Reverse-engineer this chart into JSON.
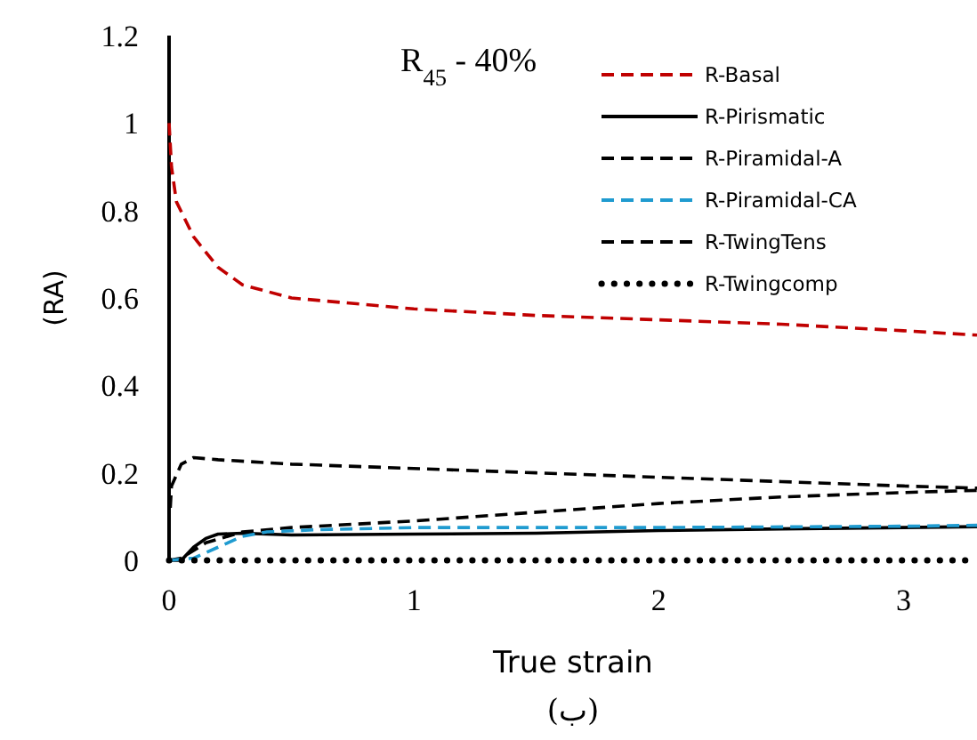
{
  "chart_data": {
    "type": "line",
    "title": "R$_{45}$ - 40%",
    "xlabel": "True strain",
    "ylabel": "(RA)",
    "annotations": [
      "(ب)"
    ],
    "xlim": [
      0,
      3.3
    ],
    "xticks": [
      0,
      1,
      2,
      3
    ],
    "ylim": [
      0,
      1.2
    ],
    "yticks": [
      0,
      0.2,
      0.4,
      0.6,
      0.8,
      1,
      1.2
    ],
    "grid": false,
    "legend": "top right",
    "series": [
      {
        "name": "R-Basal",
        "color": "#c00000",
        "line_style": "dashed",
        "x": [
          0,
          0.01,
          0.03,
          0.1,
          0.2,
          0.3,
          0.5,
          0.8,
          1,
          1.5,
          2,
          2.5,
          3,
          3.3
        ],
        "values": [
          1.0,
          0.9,
          0.82,
          0.74,
          0.67,
          0.63,
          0.6,
          0.585,
          0.575,
          0.56,
          0.55,
          0.54,
          0.525,
          0.515
        ]
      },
      {
        "name": "R-Pirismatic",
        "color": "#000000",
        "line_style": "solid",
        "x": [
          0,
          0.05,
          0.1,
          0.15,
          0.2,
          0.3,
          0.5,
          1,
          1.5,
          2,
          2.5,
          3,
          3.3
        ],
        "values": [
          0,
          0,
          0.03,
          0.05,
          0.06,
          0.062,
          0.058,
          0.06,
          0.062,
          0.068,
          0.072,
          0.075,
          0.077
        ]
      },
      {
        "name": "R-Piramidal-A",
        "color": "#000000",
        "line_style": "dashed",
        "x": [
          0,
          0.05,
          0.15,
          0.3,
          0.5,
          1,
          1.5,
          2,
          2.5,
          3,
          3.3
        ],
        "values": [
          0,
          0.005,
          0.04,
          0.065,
          0.075,
          0.09,
          0.11,
          0.13,
          0.145,
          0.155,
          0.16
        ]
      },
      {
        "name": "R-Piramidal-CA",
        "color": "#1f9bd0",
        "line_style": "dashed",
        "x": [
          0,
          0.1,
          0.2,
          0.3,
          0.4,
          0.6,
          1,
          2,
          3,
          3.3
        ],
        "values": [
          0,
          0.005,
          0.03,
          0.055,
          0.065,
          0.07,
          0.075,
          0.075,
          0.078,
          0.08
        ]
      },
      {
        "name": "R-TwingTens",
        "color": "#000000",
        "line_style": "dashed",
        "x": [
          0.005,
          0.01,
          0.05,
          0.1,
          0.2,
          0.5,
          1,
          1.5,
          2,
          2.5,
          3,
          3.3
        ],
        "values": [
          0.12,
          0.17,
          0.22,
          0.235,
          0.23,
          0.22,
          0.21,
          0.2,
          0.19,
          0.18,
          0.17,
          0.165
        ]
      },
      {
        "name": "R-Twingcomp",
        "color": "#000000",
        "line_style": "dotted",
        "x": [
          0,
          3.3
        ],
        "values": [
          0,
          0
        ]
      }
    ]
  }
}
